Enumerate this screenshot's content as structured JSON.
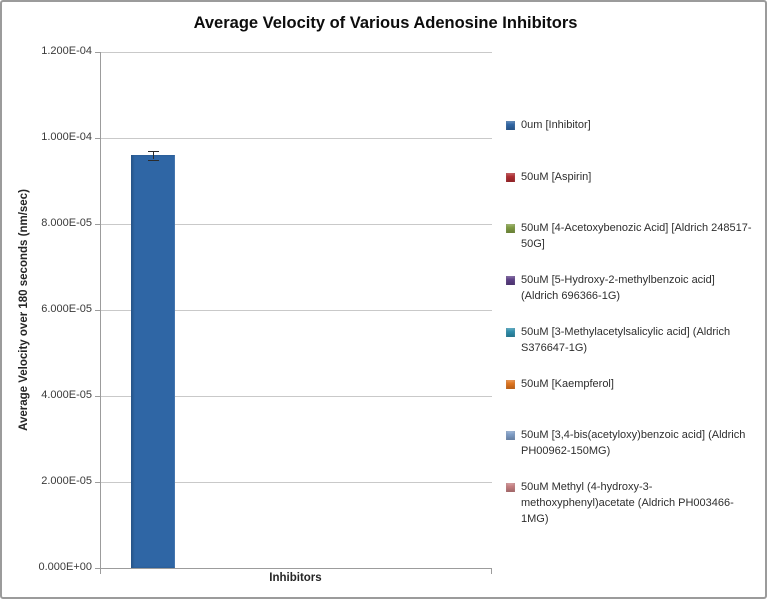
{
  "chart_data": {
    "type": "bar",
    "title": "Average Velocity of Various Adenosine Inhibitors",
    "xlabel": "Inhibitors",
    "ylabel": "Average Velocity over 180 seconds (nm/sec)",
    "ylim": [
      0,
      0.00012
    ],
    "ytick_labels": [
      "1.200E-04",
      "1.000E-04",
      "8.000E-05",
      "6.000E-05",
      "4.000E-05",
      "2.000E-05",
      "0.000E+00"
    ],
    "grid": true,
    "legend_position": "right",
    "categories": [
      "Inhibitors"
    ],
    "series": [
      {
        "name": "0um [Inhibitor]",
        "value": 9.6e-05,
        "error": 1e-06,
        "color": "#2f66a5"
      },
      {
        "name": "50uM [Aspirin]",
        "value": 0,
        "color": "#b02c30"
      },
      {
        "name": "50uM [4-Acetoxybenozic Acid] [Aldrich 248517-50G]",
        "value": 0,
        "color": "#7f9c42"
      },
      {
        "name": "50uM [5-Hydroxy-2-methylbenzoic acid] (Aldrich 696366-1G)",
        "value": 0,
        "color": "#5d3f87"
      },
      {
        "name": "50uM [3-Methylacetylsalicylic acid] (Aldrich S376647-1G)",
        "value": 0,
        "color": "#2e8fad"
      },
      {
        "name": "50uM [Kaempferol]",
        "value": 0,
        "color": "#e2751d"
      },
      {
        "name": "50uM [3,4-bis(acetyloxy)benzoic acid] (Aldrich PH00962-150MG)",
        "value": 0,
        "color": "#7e9dc7"
      },
      {
        "name": "50uM Methyl (4-hydroxy-3-methoxyphenyl)acetate (Aldrich PH003466-1MG)",
        "value": 0,
        "color": "#c67e80"
      }
    ]
  }
}
